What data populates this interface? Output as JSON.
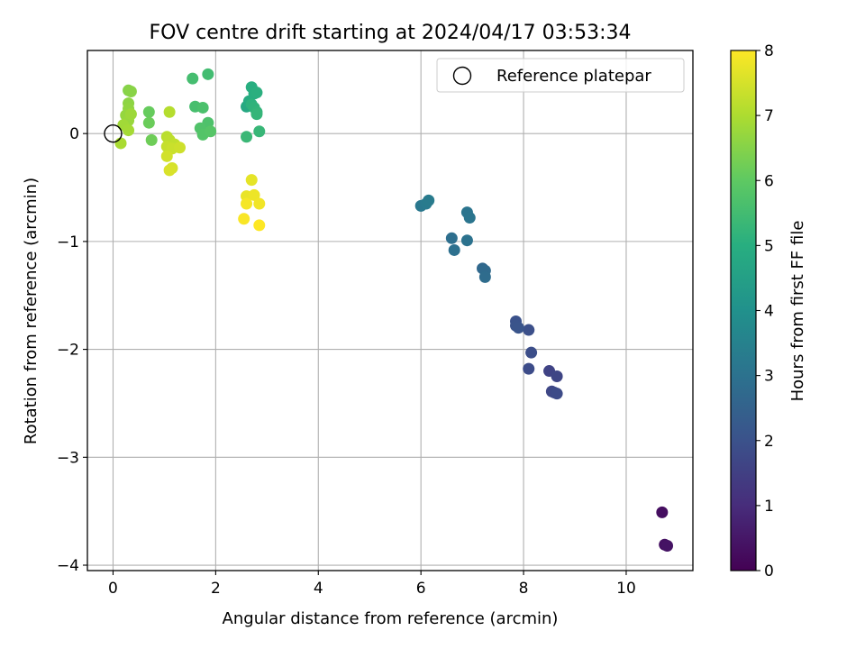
{
  "chart_data": {
    "type": "scatter",
    "title": "FOV centre drift starting at 2024/04/17 03:53:34",
    "xlabel": "Angular distance from reference (arcmin)",
    "ylabel": "Rotation from reference (arcmin)",
    "xlim": [
      -0.5,
      11.3
    ],
    "ylim": [
      -4.05,
      0.77
    ],
    "x_ticks": [
      {
        "value": 0,
        "label": "0"
      },
      {
        "value": 2,
        "label": "2"
      },
      {
        "value": 4,
        "label": "4"
      },
      {
        "value": 6,
        "label": "6"
      },
      {
        "value": 8,
        "label": "8"
      },
      {
        "value": 10,
        "label": "10"
      }
    ],
    "y_ticks": [
      {
        "value": 0,
        "label": "0"
      },
      {
        "value": -1,
        "label": "−1"
      },
      {
        "value": -2,
        "label": "−2"
      },
      {
        "value": -3,
        "label": "−3"
      },
      {
        "value": -4,
        "label": "−4"
      }
    ],
    "grid": true,
    "legend": {
      "placement": "top-right",
      "entries": [
        {
          "label": "Reference platepar",
          "marker": "open-circle"
        }
      ]
    },
    "reference_point": {
      "x": 0,
      "y": 0
    },
    "colorbar": {
      "label": "Hours from first FF file",
      "range": [
        0,
        8
      ],
      "colormap": "viridis",
      "ticks": [
        {
          "value": 0,
          "label": "0"
        },
        {
          "value": 1,
          "label": "1"
        },
        {
          "value": 2,
          "label": "2"
        },
        {
          "value": 3,
          "label": "3"
        },
        {
          "value": 4,
          "label": "4"
        },
        {
          "value": 5,
          "label": "5"
        },
        {
          "value": 6,
          "label": "6"
        },
        {
          "value": 7,
          "label": "7"
        },
        {
          "value": 8,
          "label": "8"
        }
      ]
    },
    "points": [
      {
        "x": 10.7,
        "y": -3.51,
        "t": 0.3
      },
      {
        "x": 10.75,
        "y": -3.81,
        "t": 0.35
      },
      {
        "x": 10.8,
        "y": -3.82,
        "t": 0.4
      },
      {
        "x": 8.5,
        "y": -2.2,
        "t": 1.6
      },
      {
        "x": 8.65,
        "y": -2.25,
        "t": 1.65
      },
      {
        "x": 8.55,
        "y": -2.39,
        "t": 1.7
      },
      {
        "x": 8.6,
        "y": -2.4,
        "t": 1.75
      },
      {
        "x": 8.65,
        "y": -2.41,
        "t": 1.8
      },
      {
        "x": 8.1,
        "y": -2.18,
        "t": 1.85
      },
      {
        "x": 8.15,
        "y": -2.03,
        "t": 1.9
      },
      {
        "x": 8.1,
        "y": -1.82,
        "t": 1.95
      },
      {
        "x": 7.85,
        "y": -1.74,
        "t": 2.0
      },
      {
        "x": 7.85,
        "y": -1.78,
        "t": 2.05
      },
      {
        "x": 7.9,
        "y": -1.8,
        "t": 2.1
      },
      {
        "x": 7.2,
        "y": -1.25,
        "t": 2.7
      },
      {
        "x": 7.25,
        "y": -1.27,
        "t": 2.75
      },
      {
        "x": 7.25,
        "y": -1.33,
        "t": 2.8
      },
      {
        "x": 6.6,
        "y": -0.97,
        "t": 2.9
      },
      {
        "x": 6.65,
        "y": -1.08,
        "t": 2.95
      },
      {
        "x": 6.9,
        "y": -0.99,
        "t": 3.0
      },
      {
        "x": 6.9,
        "y": -0.73,
        "t": 3.05
      },
      {
        "x": 6.95,
        "y": -0.78,
        "t": 3.1
      },
      {
        "x": 6.0,
        "y": -0.67,
        "t": 3.2
      },
      {
        "x": 6.1,
        "y": -0.65,
        "t": 3.25
      },
      {
        "x": 6.15,
        "y": -0.62,
        "t": 3.3
      },
      {
        "x": 2.6,
        "y": 0.25,
        "t": 4.8
      },
      {
        "x": 2.65,
        "y": 0.3,
        "t": 4.9
      },
      {
        "x": 2.7,
        "y": 0.43,
        "t": 5.0
      },
      {
        "x": 2.75,
        "y": 0.37,
        "t": 5.0
      },
      {
        "x": 2.8,
        "y": 0.38,
        "t": 5.05
      },
      {
        "x": 2.7,
        "y": 0.27,
        "t": 5.1
      },
      {
        "x": 2.75,
        "y": 0.24,
        "t": 5.15
      },
      {
        "x": 2.8,
        "y": 0.2,
        "t": 5.2
      },
      {
        "x": 2.8,
        "y": 0.18,
        "t": 5.25
      },
      {
        "x": 2.85,
        "y": 0.02,
        "t": 5.3
      },
      {
        "x": 2.6,
        "y": -0.03,
        "t": 5.35
      },
      {
        "x": 1.85,
        "y": 0.55,
        "t": 5.5
      },
      {
        "x": 1.55,
        "y": 0.51,
        "t": 5.55
      },
      {
        "x": 1.6,
        "y": 0.25,
        "t": 5.6
      },
      {
        "x": 1.75,
        "y": 0.24,
        "t": 5.65
      },
      {
        "x": 1.85,
        "y": 0.1,
        "t": 5.7
      },
      {
        "x": 1.7,
        "y": 0.05,
        "t": 5.75
      },
      {
        "x": 1.75,
        "y": -0.01,
        "t": 5.8
      },
      {
        "x": 1.9,
        "y": 0.02,
        "t": 5.85
      },
      {
        "x": 0.7,
        "y": 0.2,
        "t": 6.1
      },
      {
        "x": 0.7,
        "y": 0.1,
        "t": 6.15
      },
      {
        "x": 0.75,
        "y": -0.06,
        "t": 6.2
      },
      {
        "x": 0.3,
        "y": 0.4,
        "t": 6.5
      },
      {
        "x": 0.35,
        "y": 0.39,
        "t": 6.55
      },
      {
        "x": 0.3,
        "y": 0.28,
        "t": 6.6
      },
      {
        "x": 0.3,
        "y": 0.23,
        "t": 6.65
      },
      {
        "x": 0.25,
        "y": 0.17,
        "t": 6.7
      },
      {
        "x": 0.3,
        "y": 0.12,
        "t": 6.75
      },
      {
        "x": 0.35,
        "y": 0.18,
        "t": 6.8
      },
      {
        "x": 0.2,
        "y": 0.08,
        "t": 6.85
      },
      {
        "x": 0.3,
        "y": 0.03,
        "t": 6.9
      },
      {
        "x": 0.15,
        "y": -0.09,
        "t": 6.95
      },
      {
        "x": 1.1,
        "y": 0.2,
        "t": 7.1
      },
      {
        "x": 1.05,
        "y": -0.03,
        "t": 7.15
      },
      {
        "x": 1.1,
        "y": -0.06,
        "t": 7.2
      },
      {
        "x": 1.2,
        "y": -0.1,
        "t": 7.25
      },
      {
        "x": 1.05,
        "y": -0.12,
        "t": 7.3
      },
      {
        "x": 1.15,
        "y": -0.14,
        "t": 7.35
      },
      {
        "x": 1.3,
        "y": -0.13,
        "t": 7.4
      },
      {
        "x": 1.05,
        "y": -0.21,
        "t": 7.45
      },
      {
        "x": 1.15,
        "y": -0.32,
        "t": 7.5
      },
      {
        "x": 1.1,
        "y": -0.34,
        "t": 7.55
      },
      {
        "x": 2.7,
        "y": -0.43,
        "t": 7.7
      },
      {
        "x": 2.6,
        "y": -0.58,
        "t": 7.75
      },
      {
        "x": 2.75,
        "y": -0.57,
        "t": 7.8
      },
      {
        "x": 2.85,
        "y": -0.65,
        "t": 7.85
      },
      {
        "x": 2.6,
        "y": -0.65,
        "t": 7.9
      },
      {
        "x": 2.55,
        "y": -0.79,
        "t": 7.95
      },
      {
        "x": 2.85,
        "y": -0.85,
        "t": 8.0
      }
    ]
  }
}
